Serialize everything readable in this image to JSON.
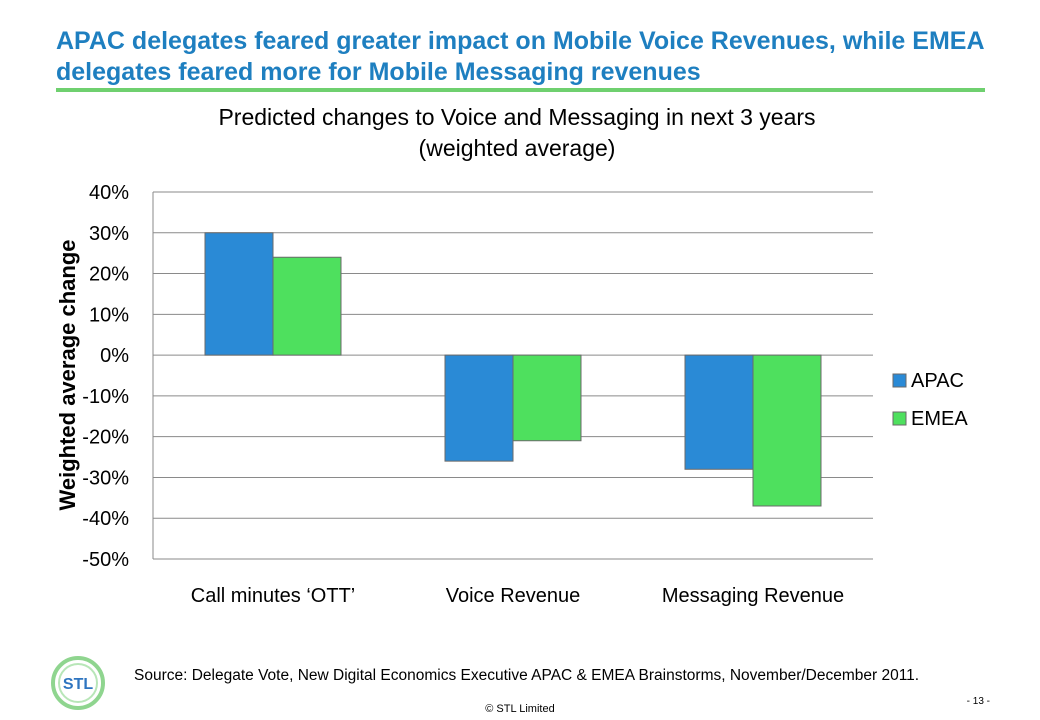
{
  "slide": {
    "title": "APAC delegates feared greater impact on Mobile Voice Revenues, while EMEA delegates feared more for Mobile Messaging revenues",
    "source": "Source: Delegate Vote, New Digital Economics Executive APAC & EMEA Brainstorms, November/December 2011.",
    "copyright": "© STL Limited",
    "page_number": "- 13 -",
    "logo_text": "STL"
  },
  "chart_data": {
    "type": "bar",
    "title": "Predicted changes to Voice and Messaging in next 3 years",
    "subtitle": "(weighted average)",
    "ylabel": "Weighted average change",
    "xlabel": "",
    "categories": [
      "Call minutes ‘OTT’",
      "Voice Revenue",
      "Messaging Revenue"
    ],
    "series": [
      {
        "name": "APAC",
        "values": [
          30,
          -26,
          -28
        ],
        "color": "#2a8ad6"
      },
      {
        "name": "EMEA",
        "values": [
          24,
          -21,
          -37
        ],
        "color": "#4ee05e"
      }
    ],
    "ylim": [
      -50,
      40
    ],
    "y_ticks": [
      40,
      30,
      20,
      10,
      0,
      -10,
      -20,
      -30,
      -40,
      -50
    ],
    "y_tick_labels": [
      "40%",
      "30%",
      "20%",
      "10%",
      "0%",
      "-10%",
      "-20%",
      "-30%",
      "-40%",
      "-50%"
    ],
    "grid": true,
    "legend_position": "right"
  }
}
